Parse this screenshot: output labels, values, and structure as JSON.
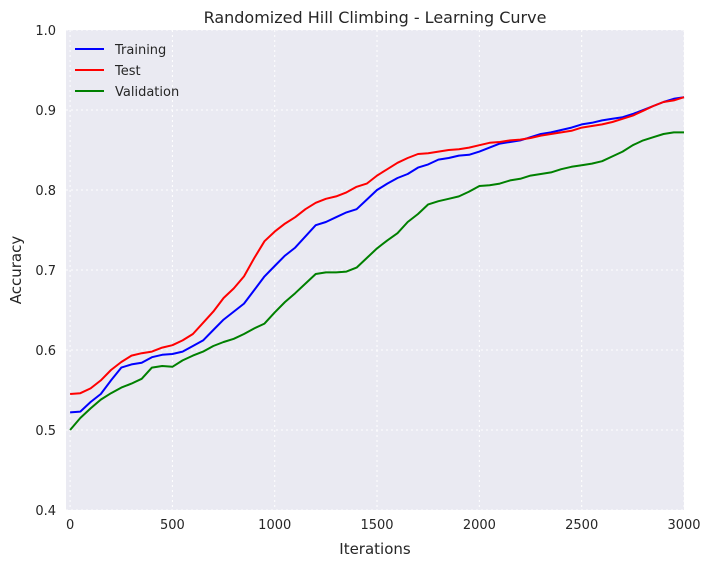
{
  "chart_data": {
    "type": "line",
    "title": "Randomized Hill Climbing - Learning Curve",
    "xlabel": "Iterations",
    "ylabel": "Accuracy",
    "xlim": [
      -20,
      3000
    ],
    "ylim": [
      0.4,
      1.0
    ],
    "xticks": [
      0,
      500,
      1000,
      1500,
      2000,
      2500,
      3000
    ],
    "yticks": [
      0.4,
      0.5,
      0.6,
      0.7,
      0.8,
      0.9,
      1.0
    ],
    "grid": true,
    "legend_position": "top-left",
    "background": "#eaeaf2",
    "series": [
      {
        "name": "Training",
        "color": "#0000ff",
        "x": [
          0,
          50,
          100,
          150,
          200,
          250,
          300,
          350,
          400,
          450,
          500,
          550,
          600,
          650,
          700,
          750,
          800,
          850,
          900,
          950,
          1000,
          1050,
          1100,
          1150,
          1200,
          1250,
          1300,
          1350,
          1400,
          1450,
          1500,
          1550,
          1600,
          1650,
          1700,
          1750,
          1800,
          1850,
          1900,
          1950,
          2000,
          2050,
          2100,
          2150,
          2200,
          2250,
          2300,
          2350,
          2400,
          2450,
          2500,
          2550,
          2600,
          2650,
          2700,
          2750,
          2800,
          2850,
          2900,
          2950,
          3000
        ],
        "y": [
          0.522,
          0.523,
          0.535,
          0.545,
          0.562,
          0.578,
          0.582,
          0.584,
          0.591,
          0.594,
          0.595,
          0.598,
          0.605,
          0.612,
          0.625,
          0.638,
          0.648,
          0.658,
          0.675,
          0.692,
          0.705,
          0.718,
          0.728,
          0.742,
          0.756,
          0.76,
          0.766,
          0.772,
          0.776,
          0.788,
          0.8,
          0.808,
          0.815,
          0.82,
          0.828,
          0.832,
          0.838,
          0.84,
          0.843,
          0.844,
          0.848,
          0.853,
          0.858,
          0.86,
          0.862,
          0.866,
          0.87,
          0.872,
          0.875,
          0.878,
          0.882,
          0.884,
          0.887,
          0.889,
          0.891,
          0.895,
          0.9,
          0.905,
          0.91,
          0.914,
          0.916
        ]
      },
      {
        "name": "Test",
        "color": "#ff0000",
        "x": [
          0,
          50,
          100,
          150,
          200,
          250,
          300,
          350,
          400,
          450,
          500,
          550,
          600,
          650,
          700,
          750,
          800,
          850,
          900,
          950,
          1000,
          1050,
          1100,
          1150,
          1200,
          1250,
          1300,
          1350,
          1400,
          1450,
          1500,
          1550,
          1600,
          1650,
          1700,
          1750,
          1800,
          1850,
          1900,
          1950,
          2000,
          2050,
          2100,
          2150,
          2200,
          2250,
          2300,
          2350,
          2400,
          2450,
          2500,
          2550,
          2600,
          2650,
          2700,
          2750,
          2800,
          2850,
          2900,
          2950,
          3000
        ],
        "y": [
          0.545,
          0.546,
          0.552,
          0.562,
          0.575,
          0.585,
          0.593,
          0.596,
          0.598,
          0.603,
          0.606,
          0.612,
          0.62,
          0.634,
          0.648,
          0.665,
          0.677,
          0.692,
          0.715,
          0.736,
          0.748,
          0.758,
          0.766,
          0.776,
          0.784,
          0.789,
          0.792,
          0.797,
          0.804,
          0.808,
          0.818,
          0.826,
          0.834,
          0.84,
          0.845,
          0.846,
          0.848,
          0.85,
          0.851,
          0.853,
          0.856,
          0.859,
          0.86,
          0.862,
          0.863,
          0.865,
          0.868,
          0.87,
          0.872,
          0.874,
          0.878,
          0.88,
          0.882,
          0.885,
          0.889,
          0.893,
          0.899,
          0.905,
          0.91,
          0.912,
          0.916
        ]
      },
      {
        "name": "Validation",
        "color": "#008000",
        "x": [
          0,
          50,
          100,
          150,
          200,
          250,
          300,
          350,
          400,
          450,
          500,
          550,
          600,
          650,
          700,
          750,
          800,
          850,
          900,
          950,
          1000,
          1050,
          1100,
          1150,
          1200,
          1250,
          1300,
          1350,
          1400,
          1450,
          1500,
          1550,
          1600,
          1650,
          1700,
          1750,
          1800,
          1850,
          1900,
          1950,
          2000,
          2050,
          2100,
          2150,
          2200,
          2250,
          2300,
          2350,
          2400,
          2450,
          2500,
          2550,
          2600,
          2650,
          2700,
          2750,
          2800,
          2850,
          2900,
          2950,
          3000
        ],
        "y": [
          0.5,
          0.515,
          0.527,
          0.538,
          0.546,
          0.553,
          0.558,
          0.564,
          0.578,
          0.58,
          0.579,
          0.587,
          0.593,
          0.598,
          0.605,
          0.61,
          0.614,
          0.62,
          0.627,
          0.633,
          0.647,
          0.66,
          0.671,
          0.683,
          0.695,
          0.697,
          0.697,
          0.698,
          0.703,
          0.715,
          0.727,
          0.737,
          0.746,
          0.76,
          0.77,
          0.782,
          0.786,
          0.789,
          0.792,
          0.798,
          0.805,
          0.806,
          0.808,
          0.812,
          0.814,
          0.818,
          0.82,
          0.822,
          0.826,
          0.829,
          0.831,
          0.833,
          0.836,
          0.842,
          0.848,
          0.856,
          0.862,
          0.866,
          0.87,
          0.872,
          0.872
        ]
      }
    ]
  }
}
